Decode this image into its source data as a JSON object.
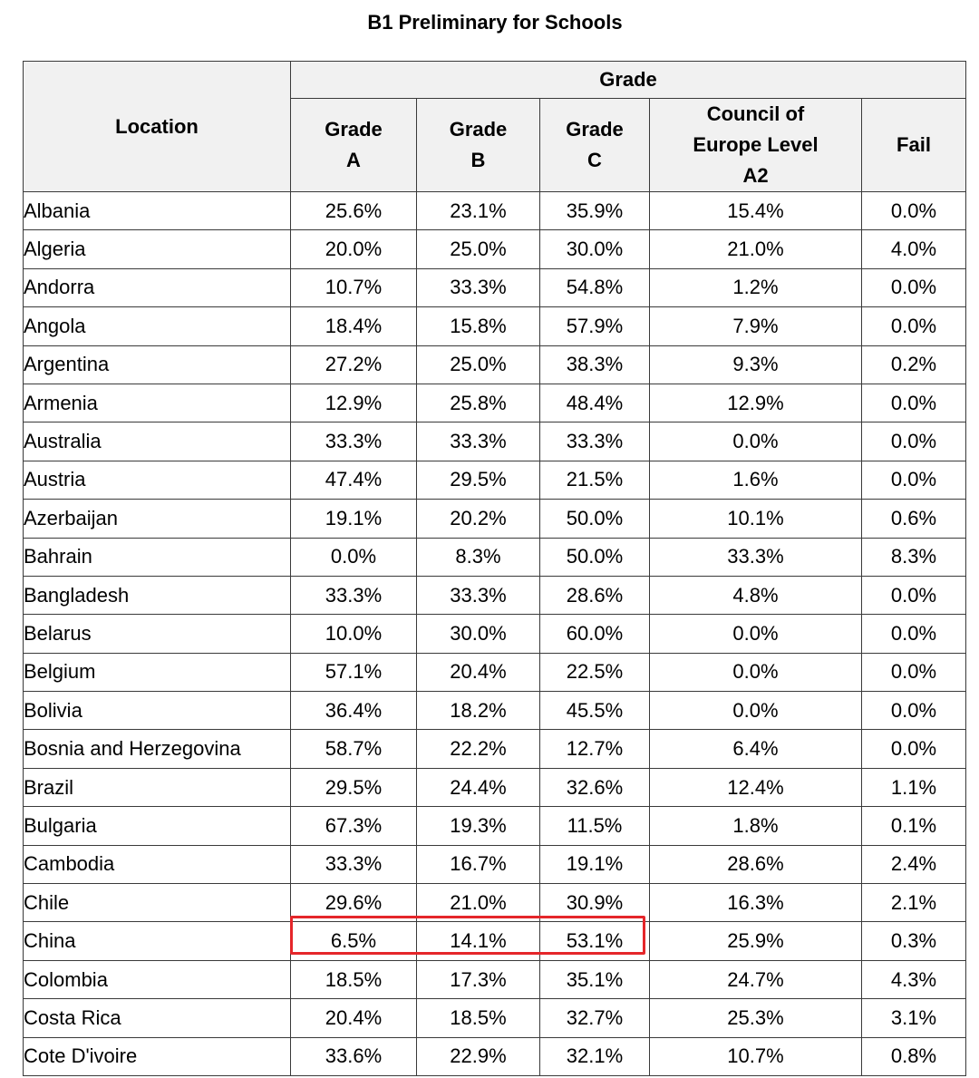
{
  "title": "B1 Preliminary for Schools",
  "header": {
    "location": "Location",
    "grade_group": "Grade",
    "columns": [
      [
        "Grade",
        "A"
      ],
      [
        "Grade",
        "B"
      ],
      [
        "Grade",
        "C"
      ],
      [
        "Council of",
        "Europe Level",
        "A2"
      ],
      [
        "Fail"
      ]
    ]
  },
  "rows": [
    {
      "location": "Albania",
      "a": "25.6%",
      "b": "23.1%",
      "c": "35.9%",
      "a2": "15.4%",
      "fail": "0.0%"
    },
    {
      "location": "Algeria",
      "a": "20.0%",
      "b": "25.0%",
      "c": "30.0%",
      "a2": "21.0%",
      "fail": "4.0%"
    },
    {
      "location": "Andorra",
      "a": "10.7%",
      "b": "33.3%",
      "c": "54.8%",
      "a2": "1.2%",
      "fail": "0.0%"
    },
    {
      "location": "Angola",
      "a": "18.4%",
      "b": "15.8%",
      "c": "57.9%",
      "a2": "7.9%",
      "fail": "0.0%"
    },
    {
      "location": "Argentina",
      "a": "27.2%",
      "b": "25.0%",
      "c": "38.3%",
      "a2": "9.3%",
      "fail": "0.2%"
    },
    {
      "location": "Armenia",
      "a": "12.9%",
      "b": "25.8%",
      "c": "48.4%",
      "a2": "12.9%",
      "fail": "0.0%"
    },
    {
      "location": "Australia",
      "a": "33.3%",
      "b": "33.3%",
      "c": "33.3%",
      "a2": "0.0%",
      "fail": "0.0%"
    },
    {
      "location": "Austria",
      "a": "47.4%",
      "b": "29.5%",
      "c": "21.5%",
      "a2": "1.6%",
      "fail": "0.0%"
    },
    {
      "location": "Azerbaijan",
      "a": "19.1%",
      "b": "20.2%",
      "c": "50.0%",
      "a2": "10.1%",
      "fail": "0.6%"
    },
    {
      "location": "Bahrain",
      "a": "0.0%",
      "b": "8.3%",
      "c": "50.0%",
      "a2": "33.3%",
      "fail": "8.3%"
    },
    {
      "location": "Bangladesh",
      "a": "33.3%",
      "b": "33.3%",
      "c": "28.6%",
      "a2": "4.8%",
      "fail": "0.0%"
    },
    {
      "location": "Belarus",
      "a": "10.0%",
      "b": "30.0%",
      "c": "60.0%",
      "a2": "0.0%",
      "fail": "0.0%"
    },
    {
      "location": "Belgium",
      "a": "57.1%",
      "b": "20.4%",
      "c": "22.5%",
      "a2": "0.0%",
      "fail": "0.0%"
    },
    {
      "location": "Bolivia",
      "a": "36.4%",
      "b": "18.2%",
      "c": "45.5%",
      "a2": "0.0%",
      "fail": "0.0%"
    },
    {
      "location": "Bosnia and Herzegovina",
      "a": "58.7%",
      "b": "22.2%",
      "c": "12.7%",
      "a2": "6.4%",
      "fail": "0.0%"
    },
    {
      "location": "Brazil",
      "a": "29.5%",
      "b": "24.4%",
      "c": "32.6%",
      "a2": "12.4%",
      "fail": "1.1%"
    },
    {
      "location": "Bulgaria",
      "a": "67.3%",
      "b": "19.3%",
      "c": "11.5%",
      "a2": "1.8%",
      "fail": "0.1%"
    },
    {
      "location": "Cambodia",
      "a": "33.3%",
      "b": "16.7%",
      "c": "19.1%",
      "a2": "28.6%",
      "fail": "2.4%"
    },
    {
      "location": "Chile",
      "a": "29.6%",
      "b": "21.0%",
      "c": "30.9%",
      "a2": "16.3%",
      "fail": "2.1%"
    },
    {
      "location": "China",
      "a": "6.5%",
      "b": "14.1%",
      "c": "53.1%",
      "a2": "25.9%",
      "fail": "0.3%"
    },
    {
      "location": "Colombia",
      "a": "18.5%",
      "b": "17.3%",
      "c": "35.1%",
      "a2": "24.7%",
      "fail": "4.3%"
    },
    {
      "location": "Costa Rica",
      "a": "20.4%",
      "b": "18.5%",
      "c": "32.7%",
      "a2": "25.3%",
      "fail": "3.1%"
    },
    {
      "location": "Cote D'ivoire",
      "a": "33.6%",
      "b": "22.9%",
      "c": "32.1%",
      "a2": "10.7%",
      "fail": "0.8%"
    }
  ],
  "highlight_color": "#e5262a"
}
